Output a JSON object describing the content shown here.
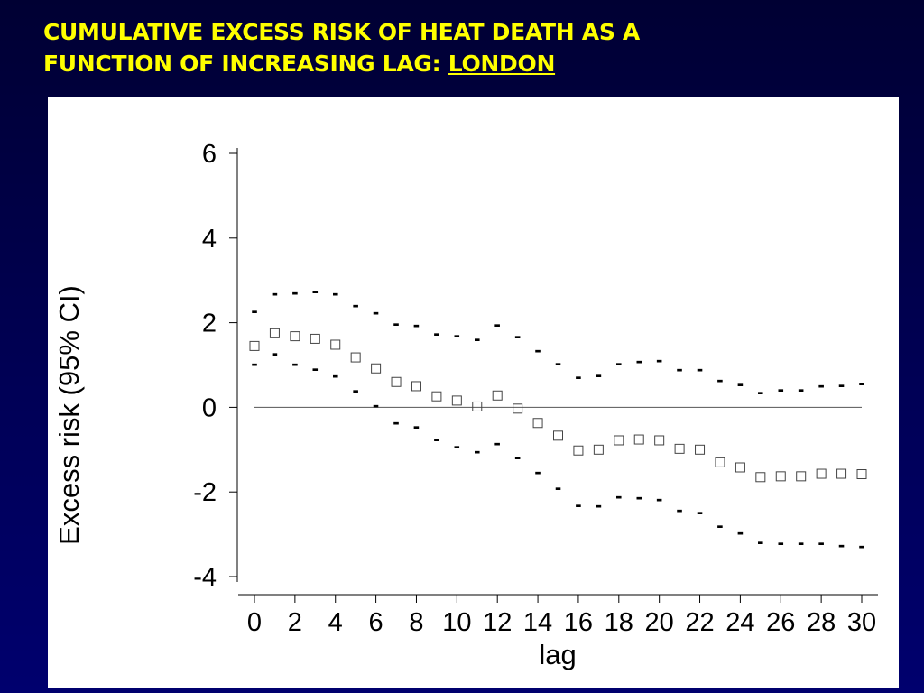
{
  "slide": {
    "title_line1": "CUMULATIVE EXCESS RISK OF HEAT DEATH AS A",
    "title_line2": "FUNCTION OF INCREASING LAG: ",
    "title_location": "LONDON"
  },
  "chart_data": {
    "type": "scatter",
    "xlabel": "lag",
    "ylabel": "Excess risk (95% CI)",
    "xlim": [
      0,
      30
    ],
    "ylim": [
      -4,
      6
    ],
    "x_ticks": [
      0,
      2,
      4,
      6,
      8,
      10,
      12,
      14,
      16,
      18,
      20,
      22,
      24,
      26,
      28,
      30
    ],
    "y_ticks": [
      -4,
      -2,
      0,
      2,
      4,
      6
    ],
    "reference_line": 0,
    "ci_marker": "-",
    "x": [
      0,
      1,
      2,
      3,
      4,
      5,
      6,
      7,
      8,
      9,
      10,
      11,
      12,
      13,
      14,
      15,
      16,
      17,
      18,
      19,
      20,
      21,
      22,
      23,
      24,
      25,
      26,
      27,
      28,
      29,
      30
    ],
    "estimate": [
      1.45,
      1.75,
      1.68,
      1.62,
      1.48,
      1.18,
      0.92,
      0.6,
      0.5,
      0.26,
      0.16,
      0.02,
      0.28,
      -0.03,
      -0.37,
      -0.67,
      -1.02,
      -1.0,
      -0.78,
      -0.76,
      -0.78,
      -0.98,
      -1.0,
      -1.3,
      -1.42,
      -1.65,
      -1.63,
      -1.63,
      -1.57,
      -1.57,
      -1.58
    ],
    "upper": [
      2.28,
      2.7,
      2.72,
      2.75,
      2.7,
      2.42,
      2.25,
      1.98,
      1.95,
      1.75,
      1.7,
      1.62,
      1.96,
      1.68,
      1.35,
      1.04,
      0.72,
      0.77,
      1.04,
      1.1,
      1.12,
      0.9,
      0.9,
      0.65,
      0.55,
      0.36,
      0.42,
      0.42,
      0.52,
      0.53,
      0.57
    ],
    "lower": [
      1.03,
      1.28,
      1.03,
      0.92,
      0.75,
      0.4,
      0.05,
      -0.35,
      -0.45,
      -0.75,
      -0.92,
      -1.04,
      -0.84,
      -1.17,
      -1.53,
      -1.9,
      -2.3,
      -2.32,
      -2.1,
      -2.12,
      -2.17,
      -2.42,
      -2.48,
      -2.8,
      -2.96,
      -3.18,
      -3.2,
      -3.2,
      -3.2,
      -3.25,
      -3.28
    ]
  }
}
